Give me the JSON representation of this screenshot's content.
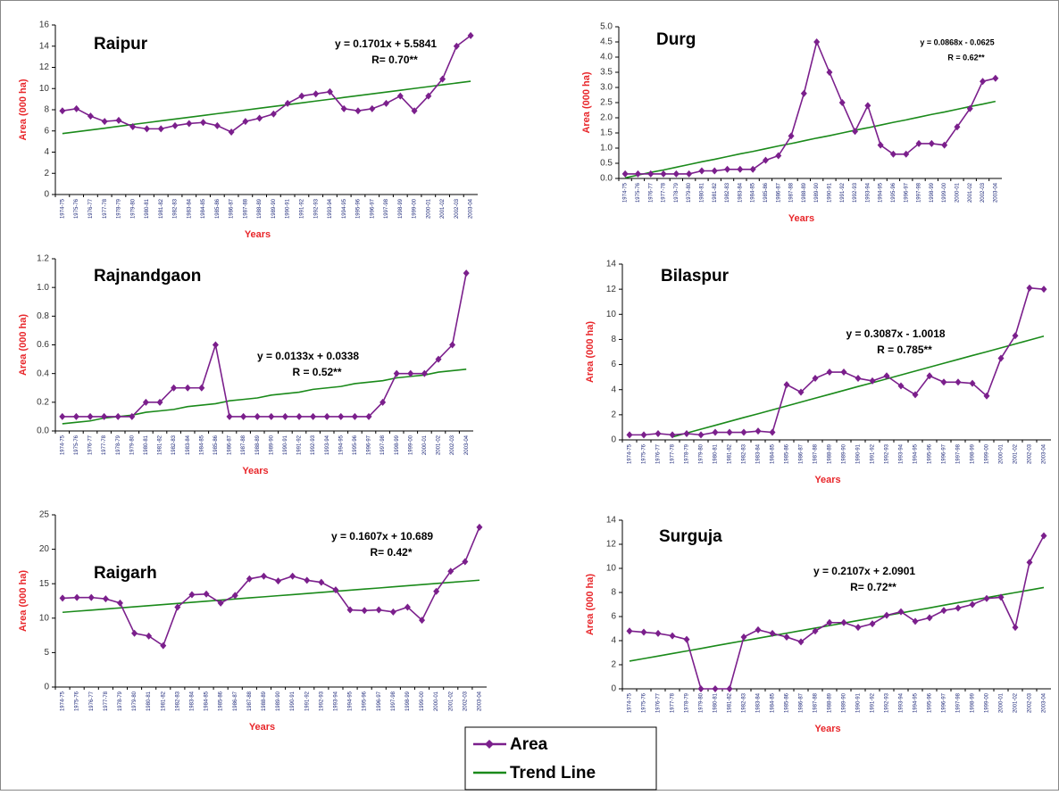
{
  "chart_data": [
    {
      "type": "line",
      "title": "Raipur",
      "equation": "y = 0.1701x + 5.5841",
      "r_text": "R= 0.70**",
      "ylabel": "Area (000 ha)",
      "xlabel": "Years",
      "categories": [
        "1974-75",
        "1975-76",
        "1976-77",
        "1977-78",
        "1978-79",
        "1979-80",
        "1980-81",
        "1981-82",
        "1982-83",
        "1983-84",
        "1984-85",
        "1985-86",
        "1986-87",
        "1987-88",
        "1988-89",
        "1989-90",
        "1990-91",
        "1991-92",
        "1992-93",
        "1993-94",
        "1994-95",
        "1995-96",
        "1996-97",
        "1997-98",
        "1998-99",
        "1999-00",
        "2000-01",
        "2001-02",
        "2002-03",
        "2003-04"
      ],
      "series": [
        {
          "name": "Area",
          "color": "#7b1f8c",
          "marker": "diamond",
          "values": [
            7.9,
            8.1,
            7.4,
            6.9,
            7.0,
            6.4,
            6.2,
            6.2,
            6.5,
            6.7,
            6.8,
            6.5,
            5.9,
            6.9,
            7.2,
            7.6,
            8.6,
            9.3,
            9.5,
            9.7,
            8.1,
            7.9,
            8.1,
            8.6,
            9.3,
            7.9,
            9.3,
            10.9,
            14.0,
            15.0
          ]
        },
        {
          "name": "Trend Line",
          "color": "#1a8a1a",
          "values": [
            5.75,
            5.92,
            6.09,
            6.26,
            6.44,
            6.61,
            6.78,
            6.95,
            7.12,
            7.29,
            7.46,
            7.63,
            7.8,
            7.97,
            8.14,
            8.31,
            8.48,
            8.65,
            8.82,
            8.99,
            9.16,
            9.33,
            9.5,
            9.67,
            9.84,
            10.01,
            10.18,
            10.35,
            10.52,
            10.69
          ]
        }
      ],
      "ylim": [
        0,
        16
      ],
      "yticks": [
        0,
        2,
        4,
        6,
        8,
        10,
        12,
        14,
        16
      ]
    },
    {
      "type": "line",
      "title": "Durg",
      "equation": "y = 0.0868x - 0.0625",
      "r_text": "R = 0.62**",
      "ylabel": "Area (000 ha)",
      "xlabel": "Years",
      "categories": [
        "1974-75",
        "1975-76",
        "1976-77",
        "1977-78",
        "1978-79",
        "1979-80",
        "1980-81",
        "1981-82",
        "1982-83",
        "1983-84",
        "1984-85",
        "1985-86",
        "1986-87",
        "1987-88",
        "1988-89",
        "1989-90",
        "1990-91",
        "1991-92",
        "1992-93",
        "1993-94",
        "1994-95",
        "1995-96",
        "1996-97",
        "1997-98",
        "1998-99",
        "1999-00",
        "2000-01",
        "2001-02",
        "2002-03",
        "2003-04"
      ],
      "series": [
        {
          "color": "#7b1f8c",
          "marker": "diamond",
          "values": [
            0.15,
            0.15,
            0.15,
            0.15,
            0.15,
            0.15,
            0.25,
            0.25,
            0.3,
            0.3,
            0.3,
            0.6,
            0.75,
            1.4,
            2.8,
            4.5,
            3.5,
            2.5,
            1.55,
            2.4,
            1.1,
            0.8,
            0.8,
            1.15,
            1.15,
            1.1,
            1.7,
            2.3,
            3.2,
            3.3
          ]
        },
        {
          "color": "#1a8a1a",
          "values": [
            0.02,
            0.11,
            0.2,
            0.28,
            0.37,
            0.46,
            0.55,
            0.63,
            0.72,
            0.81,
            0.89,
            0.98,
            1.07,
            1.15,
            1.24,
            1.33,
            1.41,
            1.5,
            1.59,
            1.67,
            1.76,
            1.85,
            1.93,
            2.02,
            2.11,
            2.19,
            2.28,
            2.37,
            2.45,
            2.54
          ]
        }
      ],
      "ylim": [
        0,
        5
      ],
      "yticks": [
        {
          "value": 0,
          "label": "0.0"
        },
        0.5,
        {
          "value": 1,
          "label": "1.0"
        },
        1.5,
        {
          "value": 2,
          "label": "2.0"
        },
        2.5,
        {
          "value": 3,
          "label": "3.0"
        },
        3.5,
        {
          "value": 4,
          "label": "4.0"
        },
        4.5,
        {
          "value": 5,
          "label": "5.0"
        }
      ]
    },
    {
      "type": "line",
      "title": "Rajnandgaon",
      "equation": "y = 0.0133x + 0.0338",
      "r_text": "R = 0.52**",
      "ylabel": "Area (000 ha)",
      "xlabel": "Years",
      "categories": [
        "1974-75",
        "1975-76",
        "1976-77",
        "1977-78",
        "1978-79",
        "1979-80",
        "1980-81",
        "1981-82",
        "1982-83",
        "1983-84",
        "1984-85",
        "1985-86",
        "1986-87",
        "1987-88",
        "1988-89",
        "1989-90",
        "1990-91",
        "1991-92",
        "1992-93",
        "1993-94",
        "1994-95",
        "1995-96",
        "1996-97",
        "1997-98",
        "1998-99",
        "1999-00",
        "2000-01",
        "2001-02",
        "2002-03",
        "2003-04"
      ],
      "series": [
        {
          "color": "#7b1f8c",
          "marker": "diamond",
          "values": [
            0.1,
            0.1,
            0.1,
            0.1,
            0.1,
            0.1,
            0.2,
            0.2,
            0.3,
            0.3,
            0.3,
            0.6,
            0.1,
            0.1,
            0.1,
            0.1,
            0.1,
            0.1,
            0.1,
            0.1,
            0.1,
            0.1,
            0.1,
            0.2,
            0.4,
            0.4,
            0.4,
            0.5,
            0.6,
            1.1
          ]
        },
        {
          "color": "#1a8a1a",
          "values": [
            0.05,
            0.06,
            0.07,
            0.09,
            0.1,
            0.11,
            0.13,
            0.14,
            0.15,
            0.17,
            0.18,
            0.19,
            0.21,
            0.22,
            0.23,
            0.25,
            0.26,
            0.27,
            0.29,
            0.3,
            0.31,
            0.33,
            0.34,
            0.35,
            0.37,
            0.38,
            0.39,
            0.41,
            0.42,
            0.43
          ]
        }
      ],
      "ylim": [
        0,
        1.2
      ],
      "yticks": [
        {
          "value": 0,
          "label": "0.0"
        },
        0.2,
        0.4,
        0.6,
        0.8,
        {
          "value": 1,
          "label": "1.0"
        },
        1.2
      ]
    },
    {
      "type": "line",
      "title": "Bilaspur",
      "equation": "y = 0.3087x - 1.0018",
      "r_text": "R = 0.785**",
      "ylabel": "Area (000 ha)",
      "xlabel": "Years",
      "categories": [
        "1974-75",
        "1975-76",
        "1976-77",
        "1977-78",
        "1978-79",
        "1979-80",
        "1980-81",
        "1981-82",
        "1982-83",
        "1983-84",
        "1984-85",
        "1985-86",
        "1986-87",
        "1987-88",
        "1988-89",
        "1989-90",
        "1990-91",
        "1991-92",
        "1992-93",
        "1993-94",
        "1994-95",
        "1995-96",
        "1996-97",
        "1997-98",
        "1998-99",
        "1999-00",
        "2000-01",
        "2001-02",
        "2002-03",
        "2003-04"
      ],
      "series": [
        {
          "color": "#7b1f8c",
          "marker": "diamond",
          "values": [
            0.4,
            0.4,
            0.5,
            0.4,
            0.5,
            0.4,
            0.6,
            0.6,
            0.6,
            0.7,
            0.6,
            4.4,
            3.8,
            4.9,
            5.4,
            5.4,
            4.9,
            4.7,
            5.1,
            4.3,
            3.6,
            5.1,
            4.6,
            4.6,
            4.5,
            3.5,
            6.5,
            8.3,
            12.1,
            12.0
          ]
        },
        {
          "color": "#1a8a1a",
          "values": [
            null,
            null,
            null,
            0.23,
            0.54,
            0.85,
            1.16,
            1.47,
            1.78,
            2.08,
            2.39,
            2.7,
            3.01,
            3.32,
            3.63,
            3.94,
            4.25,
            4.55,
            4.86,
            5.17,
            5.48,
            5.79,
            6.1,
            6.41,
            6.72,
            7.02,
            7.33,
            7.64,
            7.95,
            8.26
          ]
        }
      ],
      "ylim": [
        0,
        14
      ],
      "yticks": [
        0,
        2,
        4,
        6,
        8,
        10,
        12,
        14
      ]
    },
    {
      "type": "line",
      "title": "Raigarh",
      "equation": "y = 0.1607x + 10.689",
      "r_text": "R= 0.42*",
      "ylabel": "Area (000 ha)",
      "xlabel": "Years",
      "categories": [
        "1974-75",
        "1975-76",
        "1976-77",
        "1977-78",
        "1978-79",
        "1979-80",
        "1980-81",
        "1981-82",
        "1982-83",
        "1983-84",
        "1984-85",
        "1985-86",
        "1986-87",
        "1987-88",
        "1988-89",
        "1989-90",
        "1990-91",
        "1991-92",
        "1992-93",
        "1993-94",
        "1994-95",
        "1995-96",
        "1996-97",
        "1997-98",
        "1998-99",
        "1999-00",
        "2000-01",
        "2001-02",
        "2002-03",
        "2003-04"
      ],
      "series": [
        {
          "color": "#7b1f8c",
          "marker": "diamond",
          "values": [
            12.9,
            13.0,
            13.0,
            12.8,
            12.2,
            7.8,
            7.4,
            6.0,
            11.6,
            13.4,
            13.5,
            12.2,
            13.3,
            15.7,
            16.1,
            15.4,
            16.1,
            15.5,
            15.2,
            14.1,
            11.2,
            11.1,
            11.2,
            10.9,
            11.6,
            9.7,
            13.9,
            16.8,
            18.2,
            23.2
          ]
        },
        {
          "color": "#1a8a1a",
          "values": [
            10.85,
            11.01,
            11.17,
            11.33,
            11.49,
            11.65,
            11.81,
            11.97,
            12.14,
            12.3,
            12.46,
            12.62,
            12.78,
            12.94,
            13.1,
            13.26,
            13.42,
            13.58,
            13.74,
            13.9,
            14.06,
            14.22,
            14.38,
            14.55,
            14.71,
            14.87,
            15.03,
            15.19,
            15.35,
            15.51
          ]
        }
      ],
      "ylim": [
        0,
        25
      ],
      "yticks": [
        0,
        5,
        10,
        15,
        20,
        25
      ]
    },
    {
      "type": "line",
      "title": "Surguja",
      "equation": "y = 0.2107x + 2.0901",
      "r_text": "R= 0.72**",
      "ylabel": "Area (000 ha)",
      "xlabel": "Years",
      "categories": [
        "1974-75",
        "1975-76",
        "1976-77",
        "1977-78",
        "1978-79",
        "1979-80",
        "1980-81",
        "1981-82",
        "1982-83",
        "1983-84",
        "1984-85",
        "1985-86",
        "1986-87",
        "1987-88",
        "1988-89",
        "1989-90",
        "1990-91",
        "1991-92",
        "1992-93",
        "1993-94",
        "1994-95",
        "1995-96",
        "1996-97",
        "1997-98",
        "1998-99",
        "1999-00",
        "2000-01",
        "2001-02",
        "2002-03",
        "2003-04"
      ],
      "series": [
        {
          "color": "#7b1f8c",
          "marker": "diamond",
          "values": [
            4.8,
            4.7,
            4.6,
            4.4,
            4.1,
            0.0,
            0.0,
            0.0,
            4.3,
            4.9,
            4.6,
            4.3,
            3.9,
            4.8,
            5.5,
            5.5,
            5.1,
            5.4,
            6.1,
            6.4,
            5.6,
            5.9,
            6.5,
            6.7,
            7.0,
            7.5,
            7.6,
            5.1,
            10.5,
            12.7
          ]
        },
        {
          "color": "#1a8a1a",
          "values": [
            2.3,
            2.51,
            2.72,
            2.93,
            3.14,
            3.35,
            3.57,
            3.78,
            3.99,
            4.2,
            4.41,
            4.62,
            4.83,
            5.04,
            5.25,
            5.46,
            5.67,
            5.88,
            6.09,
            6.3,
            6.51,
            6.72,
            6.94,
            7.15,
            7.36,
            7.57,
            7.78,
            7.99,
            8.2,
            8.41
          ]
        }
      ],
      "ylim": [
        0,
        14
      ],
      "yticks": [
        0,
        2,
        4,
        6,
        8,
        10,
        12,
        14
      ]
    }
  ]
}
